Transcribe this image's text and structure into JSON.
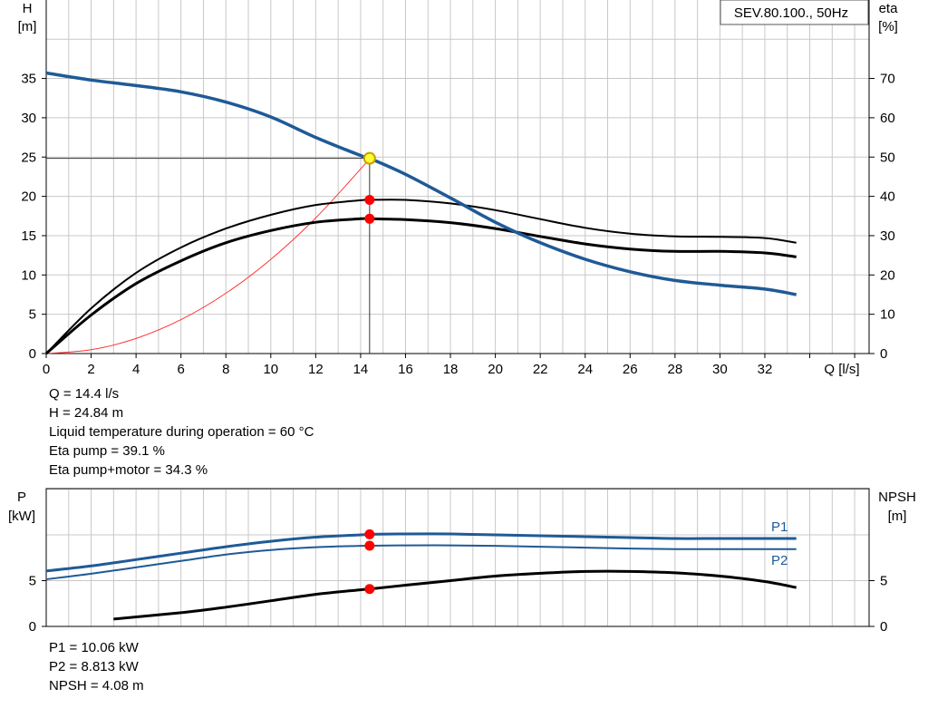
{
  "chart_data": [
    {
      "type": "line",
      "title_box": "SEV.80.100., 50Hz",
      "xlabel": "Q [l/s]",
      "ylabel_left": [
        "H",
        "[m]"
      ],
      "ylabel_right": [
        "eta",
        "[%]"
      ],
      "xlim": [
        0,
        36
      ],
      "ylim_left": [
        0,
        40
      ],
      "ylim_right": [
        0,
        80
      ],
      "x_ticks": [
        0,
        2,
        4,
        6,
        8,
        10,
        12,
        14,
        16,
        18,
        20,
        22,
        24,
        26,
        28,
        30,
        32
      ],
      "y_ticks_left": [
        0,
        5,
        10,
        15,
        20,
        25,
        30,
        35
      ],
      "y_ticks_right": [
        0,
        10,
        20,
        30,
        40,
        50,
        60,
        70
      ],
      "grid": true,
      "series": [
        {
          "color": "#1f5a96",
          "axis": "left",
          "points": [
            [
              0,
              35.7
            ],
            [
              2,
              34.8
            ],
            [
              4,
              34.1
            ],
            [
              6,
              33.3
            ],
            [
              8,
              32.0
            ],
            [
              10,
              30.1
            ],
            [
              12,
              27.5
            ],
            [
              14,
              25.2
            ],
            [
              14.4,
              24.84
            ],
            [
              16,
              22.8
            ],
            [
              18,
              19.8
            ],
            [
              20,
              16.7
            ],
            [
              22,
              14.1
            ],
            [
              24,
              12.0
            ],
            [
              26,
              10.4
            ],
            [
              28,
              9.3
            ],
            [
              30,
              8.7
            ],
            [
              32,
              8.2
            ],
            [
              33.4,
              7.5
            ]
          ]
        },
        {
          "color": "#000000",
          "axis": "right",
          "points": [
            [
              0,
              0
            ],
            [
              2,
              11.5
            ],
            [
              4,
              20.5
            ],
            [
              6,
              27.0
            ],
            [
              8,
              31.8
            ],
            [
              10,
              35.3
            ],
            [
              12,
              37.8
            ],
            [
              14,
              39.0
            ],
            [
              14.4,
              39.1
            ],
            [
              16,
              39.1
            ],
            [
              18,
              38.2
            ],
            [
              20,
              36.5
            ],
            [
              22,
              34.2
            ],
            [
              24,
              32.0
            ],
            [
              26,
              30.5
            ],
            [
              28,
              29.8
            ],
            [
              30,
              29.7
            ],
            [
              32,
              29.4
            ],
            [
              33.4,
              28.2
            ]
          ]
        },
        {
          "color": "#000000",
          "axis": "right",
          "points": [
            [
              0,
              0
            ],
            [
              2,
              9.8
            ],
            [
              4,
              17.8
            ],
            [
              6,
              23.6
            ],
            [
              8,
              28.2
            ],
            [
              10,
              31.3
            ],
            [
              12,
              33.4
            ],
            [
              14,
              34.3
            ],
            [
              14.4,
              34.3
            ],
            [
              16,
              34.1
            ],
            [
              18,
              33.3
            ],
            [
              20,
              31.8
            ],
            [
              22,
              29.8
            ],
            [
              24,
              27.9
            ],
            [
              26,
              26.6
            ],
            [
              28,
              26.0
            ],
            [
              30,
              26.0
            ],
            [
              32,
              25.6
            ],
            [
              33.4,
              24.6
            ]
          ]
        },
        {
          "color": "#ff3333",
          "axis": "left",
          "points": [
            [
              0,
              0
            ],
            [
              2,
              0.48
            ],
            [
              4,
              1.92
            ],
            [
              6,
              4.31
            ],
            [
              8,
              7.67
            ],
            [
              10,
              11.98
            ],
            [
              12,
              17.25
            ],
            [
              14,
              23.48
            ],
            [
              14.4,
              24.84
            ]
          ]
        }
      ],
      "operating_point": {
        "q": 14.4,
        "h": 24.84,
        "eta_pump": 39.1,
        "eta_pump_motor": 34.3
      },
      "info_lines": [
        "Q = 14.4 l/s",
        "H = 24.84 m",
        "Liquid temperature during operation = 60 °C",
        "Eta pump = 39.1 %",
        "Eta pump+motor = 34.3 %"
      ]
    },
    {
      "type": "line",
      "ylabel_left": [
        "P",
        "[kW]"
      ],
      "ylabel_right": [
        "NPSH",
        "[m]"
      ],
      "xlim": [
        0,
        36
      ],
      "ylim_left": [
        0,
        10
      ],
      "ylim_right": [
        0,
        10
      ],
      "y_ticks_left": [
        0,
        5
      ],
      "y_ticks_right": [
        0,
        5
      ],
      "grid": true,
      "series": [
        {
          "name": "P1",
          "color": "#1f5a96",
          "axis": "left",
          "points": [
            [
              0,
              6.05
            ],
            [
              2,
              6.6
            ],
            [
              4,
              7.3
            ],
            [
              6,
              8.0
            ],
            [
              8,
              8.7
            ],
            [
              10,
              9.3
            ],
            [
              12,
              9.75
            ],
            [
              14,
              10.0
            ],
            [
              14.4,
              10.06
            ],
            [
              16,
              10.1
            ],
            [
              18,
              10.1
            ],
            [
              20,
              10.0
            ],
            [
              22,
              9.9
            ],
            [
              24,
              9.8
            ],
            [
              26,
              9.7
            ],
            [
              28,
              9.6
            ],
            [
              30,
              9.6
            ],
            [
              32,
              9.6
            ],
            [
              33.4,
              9.6
            ]
          ]
        },
        {
          "name": "P2",
          "color": "#1f5a96",
          "axis": "left",
          "points": [
            [
              0,
              5.15
            ],
            [
              2,
              5.75
            ],
            [
              4,
              6.45
            ],
            [
              6,
              7.15
            ],
            [
              8,
              7.85
            ],
            [
              10,
              8.35
            ],
            [
              12,
              8.65
            ],
            [
              14,
              8.8
            ],
            [
              14.4,
              8.813
            ],
            [
              16,
              8.85
            ],
            [
              18,
              8.85
            ],
            [
              20,
              8.8
            ],
            [
              22,
              8.7
            ],
            [
              24,
              8.6
            ],
            [
              26,
              8.5
            ],
            [
              28,
              8.45
            ],
            [
              30,
              8.45
            ],
            [
              32,
              8.45
            ],
            [
              33.4,
              8.45
            ]
          ]
        },
        {
          "color": "#000000",
          "axis": "right",
          "points": [
            [
              3,
              0.8
            ],
            [
              6,
              1.5
            ],
            [
              8,
              2.1
            ],
            [
              10,
              2.8
            ],
            [
              12,
              3.5
            ],
            [
              14,
              4.0
            ],
            [
              14.4,
              4.08
            ],
            [
              16,
              4.5
            ],
            [
              18,
              5.0
            ],
            [
              20,
              5.5
            ],
            [
              22,
              5.8
            ],
            [
              24,
              6.0
            ],
            [
              26,
              6.0
            ],
            [
              28,
              5.85
            ],
            [
              30,
              5.5
            ],
            [
              32,
              4.9
            ],
            [
              33.4,
              4.25
            ]
          ]
        }
      ],
      "operating_point": {
        "q": 14.4,
        "p1": 10.06,
        "p2": 8.813,
        "npsh": 4.08
      },
      "info_lines": [
        "P1 = 10.06 kW",
        "P2 = 8.813 kW",
        "NPSH = 4.08 m"
      ]
    }
  ],
  "colors": {
    "grid": "#c8c8c8",
    "axis": "#000000",
    "head_curve": "#1f5a96",
    "system_curve": "#ff3333",
    "duty_dot": "#ff0000",
    "duty_ring": "#c8a200",
    "duty_fill": "#ffff33"
  }
}
